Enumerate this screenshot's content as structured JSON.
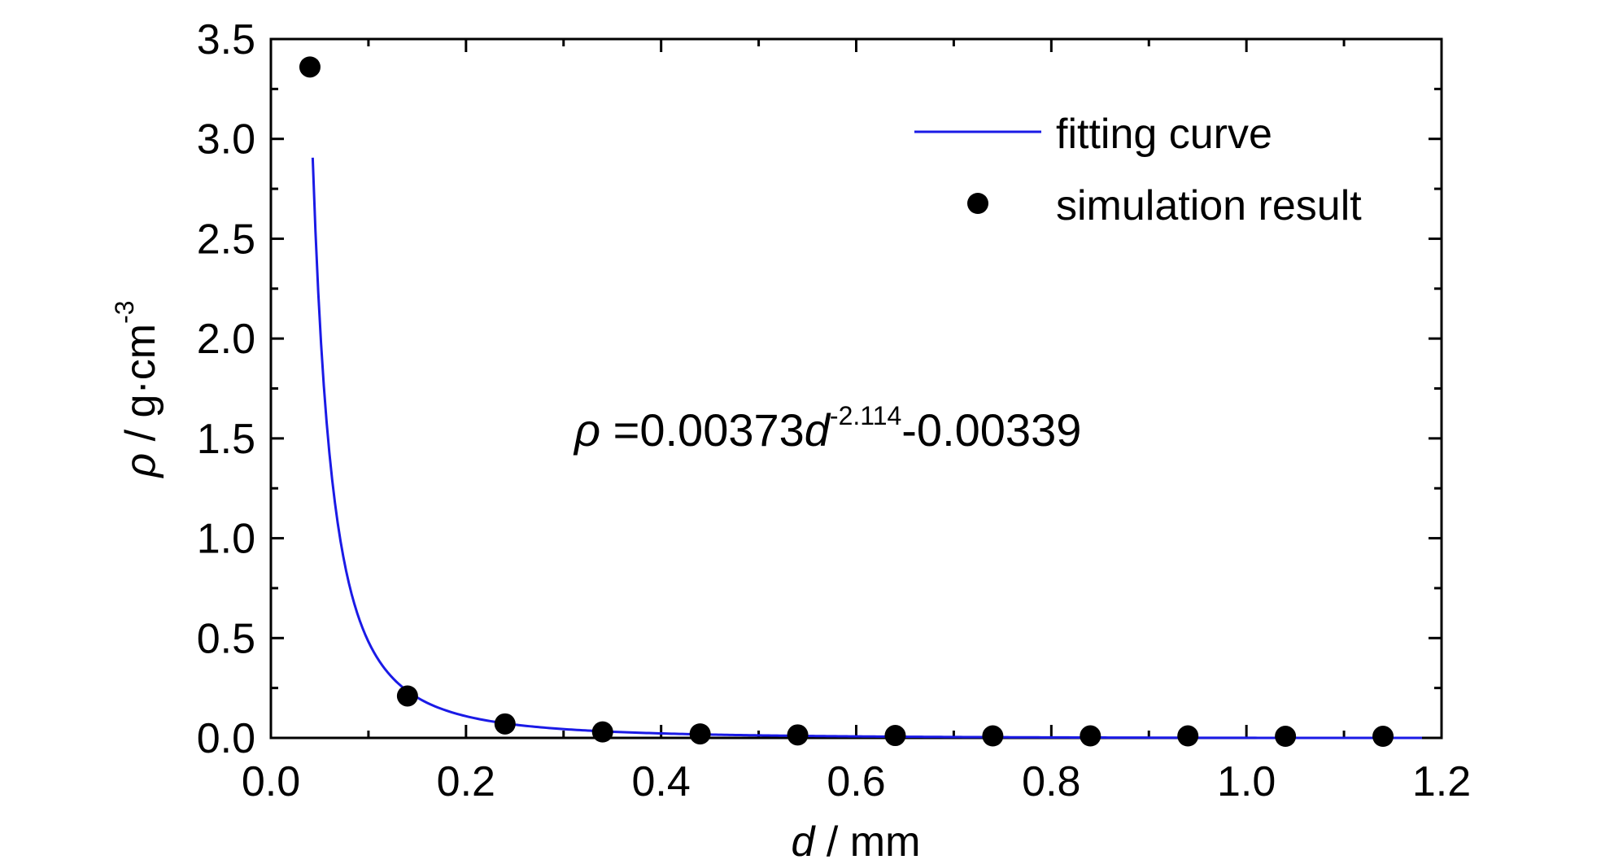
{
  "chart_data": {
    "type": "scatter",
    "x_label_var": "d",
    "x_label_unit": " / mm",
    "y_label_var": "ρ",
    "y_label_unit": " / g·cm",
    "y_label_sup": "-3",
    "xlim": [
      0.0,
      1.2
    ],
    "ylim": [
      0.0,
      3.5
    ],
    "x_ticks": [
      "0.0",
      "0.2",
      "0.4",
      "0.6",
      "0.8",
      "1.0",
      "1.2"
    ],
    "y_ticks": [
      "0.0",
      "0.5",
      "1.0",
      "1.5",
      "2.0",
      "2.5",
      "3.0",
      "3.5"
    ],
    "legend": {
      "position": "top-right",
      "line_label": "fitting curve",
      "points_label": "simulation result"
    },
    "equation": {
      "rho": "ρ",
      "prefix": " =0.00373",
      "var": "d",
      "exponent": "-2.114",
      "suffix": "-0.00339"
    },
    "fit": {
      "a": 0.00373,
      "b": -2.114,
      "c": -0.00339,
      "x_range": [
        0.04,
        1.18
      ]
    },
    "series": [
      {
        "name": "simulation result",
        "marker": "circle",
        "color": "#000000",
        "x": [
          0.04,
          0.14,
          0.24,
          0.34,
          0.44,
          0.54,
          0.64,
          0.74,
          0.84,
          0.94,
          1.04,
          1.14
        ],
        "y": [
          3.36,
          0.21,
          0.07,
          0.03,
          0.02,
          0.015,
          0.012,
          0.01,
          0.01,
          0.01,
          0.008,
          0.008
        ]
      },
      {
        "name": "fitting curve",
        "type": "line",
        "color": "#1a1ae6"
      }
    ],
    "grid": false
  }
}
